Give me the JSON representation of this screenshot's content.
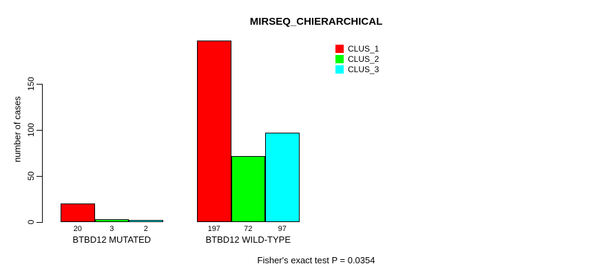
{
  "chart_data": {
    "type": "bar",
    "title": "MIRSEQ_CHIERARCHICAL",
    "ylabel": "number of cases",
    "xlabel": "",
    "yticks": [
      0,
      50,
      100,
      150
    ],
    "ylim": [
      0,
      150
    ],
    "grid": false,
    "legend_position": "top-right",
    "categories": [
      "BTBD12 MUTATED",
      "BTBD12 WILD-TYPE"
    ],
    "series": [
      {
        "name": "CLUS_1",
        "color": "#ff0000",
        "values": [
          20,
          197
        ]
      },
      {
        "name": "CLUS_2",
        "color": "#00ff00",
        "values": [
          3,
          72
        ]
      },
      {
        "name": "CLUS_3",
        "color": "#00ffff",
        "values": [
          2,
          97
        ]
      }
    ],
    "bar_value_labels": [
      [
        20,
        3,
        2
      ],
      [
        197,
        72,
        97
      ]
    ],
    "annotation": "Fisher's exact test P = 0.0354"
  }
}
